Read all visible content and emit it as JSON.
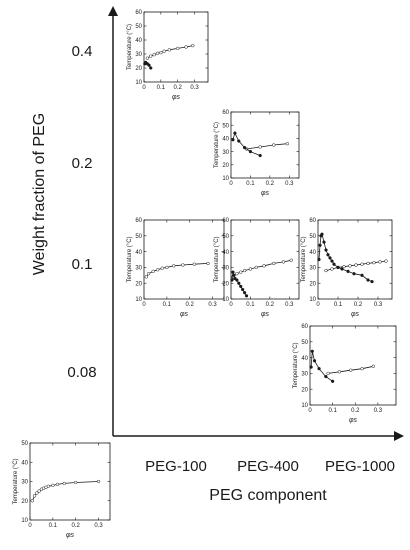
{
  "figure": {
    "y_axis_title": "Weight fraction of PEG",
    "x_axis_title": "PEG component",
    "row_labels": [
      "0.4",
      "0.2",
      "0.1",
      "0.08"
    ],
    "column_labels": [
      "PEG-100",
      "PEG-400",
      "PEG-1000"
    ],
    "axis_color": "#1a1a1a",
    "plot_background": "#ffffff"
  },
  "chart_data": [
    {
      "id": "peg100-w0.4",
      "type": "scatter",
      "xlabel": "φs",
      "ylabel": "Temperature (°C)",
      "xlim": [
        0,
        0.38
      ],
      "ylim": [
        10,
        60
      ],
      "xticks": [
        "0",
        "0.1",
        "0.2",
        "0.3"
      ],
      "yticks": [
        "10",
        "20",
        "30",
        "40",
        "50",
        "60"
      ],
      "series": [
        {
          "marker": "open",
          "x": [
            0.02,
            0.04,
            0.06,
            0.08,
            0.1,
            0.12,
            0.15,
            0.2,
            0.25,
            0.29
          ],
          "y": [
            27,
            28.5,
            29.5,
            30.5,
            31,
            32,
            33,
            34,
            35,
            36
          ],
          "fit": true
        },
        {
          "marker": "filled",
          "x": [
            0.005,
            0.01,
            0.02,
            0.03,
            0.04
          ],
          "y": [
            23,
            24,
            23,
            22,
            20
          ],
          "fit": true
        }
      ]
    },
    {
      "id": "peg400-w0.2",
      "type": "scatter",
      "xlabel": "φs",
      "ylabel": "Temperature (°C)",
      "xlim": [
        0,
        0.35
      ],
      "ylim": [
        10,
        60
      ],
      "xticks": [
        "0",
        "0.1",
        "0.2",
        "0.3"
      ],
      "yticks": [
        "10",
        "20",
        "30",
        "40",
        "50",
        "60"
      ],
      "series": [
        {
          "marker": "open",
          "x": [
            0.08,
            0.15,
            0.22,
            0.29
          ],
          "y": [
            32,
            33.5,
            35,
            36
          ],
          "fit": true
        },
        {
          "marker": "filled",
          "x": [
            0.01,
            0.02,
            0.04,
            0.07,
            0.1,
            0.15
          ],
          "y": [
            39,
            44,
            38,
            33,
            30,
            27
          ],
          "fit": true
        }
      ]
    },
    {
      "id": "peg100-w0.1",
      "type": "scatter",
      "xlabel": "φs",
      "ylabel": "Temperature (°C)",
      "xlim": [
        0,
        0.35
      ],
      "ylim": [
        10,
        60
      ],
      "xticks": [
        "0",
        "0.1",
        "0.2",
        "0.3"
      ],
      "yticks": [
        "10",
        "20",
        "30",
        "40",
        "50",
        "60"
      ],
      "series": [
        {
          "marker": "open",
          "x": [
            0.01,
            0.02,
            0.04,
            0.06,
            0.08,
            0.1,
            0.13,
            0.17,
            0.22,
            0.28
          ],
          "y": [
            24,
            26,
            27.5,
            28.5,
            29.5,
            30,
            31,
            31.5,
            32,
            32.5
          ],
          "fit": true
        }
      ]
    },
    {
      "id": "peg400-w0.1",
      "type": "scatter",
      "xlabel": "φs",
      "ylabel": "Temperature (°C)",
      "xlim": [
        0,
        0.35
      ],
      "ylim": [
        10,
        60
      ],
      "xticks": [
        "0",
        "0.1",
        "0.2",
        "0.3"
      ],
      "yticks": [
        "10",
        "20",
        "30",
        "40",
        "50",
        "60"
      ],
      "series": [
        {
          "marker": "open",
          "x": [
            0.01,
            0.03,
            0.05,
            0.07,
            0.1,
            0.13,
            0.17,
            0.22,
            0.27,
            0.31
          ],
          "y": [
            24,
            26,
            27,
            28,
            29,
            30,
            31,
            32.5,
            33.5,
            34.5
          ],
          "fit": true
        },
        {
          "marker": "filled",
          "x": [
            0.005,
            0.01,
            0.015,
            0.02,
            0.03,
            0.04,
            0.05,
            0.06,
            0.07,
            0.08
          ],
          "y": [
            22,
            27,
            25,
            23,
            22,
            20,
            18,
            16,
            14,
            12
          ],
          "fit": true
        }
      ]
    },
    {
      "id": "peg1000-w0.1",
      "type": "scatter",
      "xlabel": "φs",
      "ylabel": "Temperature (°C)",
      "xlim": [
        0,
        0.37
      ],
      "ylim": [
        10,
        60
      ],
      "xticks": [
        "0",
        "0.1",
        "0.2",
        "0.3"
      ],
      "yticks": [
        "10",
        "20",
        "30",
        "40",
        "50",
        "60"
      ],
      "series": [
        {
          "marker": "open",
          "x": [
            0.04,
            0.07,
            0.1,
            0.13,
            0.16,
            0.19,
            0.22,
            0.25,
            0.28,
            0.31,
            0.34
          ],
          "y": [
            28,
            29,
            30,
            30.5,
            31,
            31.5,
            32,
            32.5,
            33,
            33.5,
            34
          ],
          "fit": true
        },
        {
          "marker": "filled",
          "x": [
            0.005,
            0.01,
            0.015,
            0.02,
            0.03,
            0.04,
            0.05,
            0.06,
            0.07,
            0.08,
            0.1,
            0.12,
            0.15,
            0.18,
            0.22,
            0.25,
            0.27
          ],
          "y": [
            35,
            44,
            50,
            51,
            46,
            41,
            38,
            36,
            34,
            32,
            30,
            29,
            27.5,
            26,
            25,
            22,
            21
          ],
          "fit": true
        }
      ]
    },
    {
      "id": "peg1000-w0.08",
      "type": "scatter",
      "xlabel": "φs",
      "ylabel": "Temperature (°C)",
      "xlim": [
        0,
        0.38
      ],
      "ylim": [
        10,
        60
      ],
      "xticks": [
        "0",
        "0.1",
        "0.2",
        "0.3"
      ],
      "yticks": [
        "10",
        "20",
        "30",
        "40",
        "50",
        "60"
      ],
      "series": [
        {
          "marker": "open",
          "x": [
            0.08,
            0.13,
            0.18,
            0.23,
            0.28
          ],
          "y": [
            30,
            31,
            32,
            33,
            34.5
          ],
          "fit": true
        },
        {
          "marker": "filled",
          "x": [
            0.005,
            0.01,
            0.02,
            0.04,
            0.07,
            0.1
          ],
          "y": [
            34,
            44,
            38,
            33,
            28,
            25
          ],
          "fit": true
        }
      ]
    },
    {
      "id": "extra-bottom-left",
      "type": "scatter",
      "xlabel": "φs",
      "ylabel": "Temperature (°C)",
      "xlim": [
        0,
        0.35
      ],
      "ylim": [
        10,
        50
      ],
      "xticks": [
        "0",
        "0.1",
        "0.2",
        "0.3"
      ],
      "yticks": [
        "10",
        "20",
        "30",
        "40",
        "50"
      ],
      "series": [
        {
          "marker": "open",
          "x": [
            0.01,
            0.02,
            0.03,
            0.04,
            0.05,
            0.06,
            0.07,
            0.08,
            0.1,
            0.12,
            0.15,
            0.2,
            0.3
          ],
          "y": [
            20,
            22.5,
            24,
            25,
            26,
            26.5,
            27,
            27.5,
            28,
            28.5,
            29,
            29.5,
            30
          ],
          "fit": true
        }
      ]
    }
  ]
}
